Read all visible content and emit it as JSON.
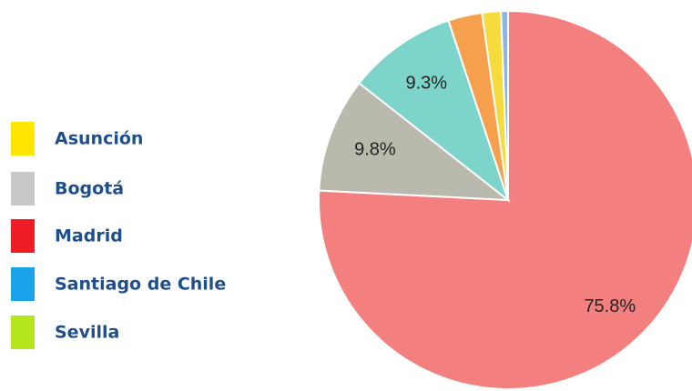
{
  "legend": [
    {
      "label": "Asunción",
      "color": "#ffe600"
    },
    {
      "label": "Bogotá",
      "color": "#c8c8c8"
    },
    {
      "label": "Madrid",
      "color": "#ee1c25"
    },
    {
      "label": "Santiago de Chile",
      "color": "#1aa3e8"
    },
    {
      "label": "Sevilla",
      "color": "#b5e61d"
    }
  ],
  "chart_data": {
    "type": "pie",
    "values": [
      75.8,
      9.8,
      9.3,
      2.9,
      1.6,
      0.6
    ],
    "value_labels": [
      "75.8%",
      "9.8%",
      "9.3%",
      null,
      null,
      null
    ],
    "colors": [
      "#f47f7f",
      "#bab9ad",
      "#7dd4cb",
      "#f6a04e",
      "#f5dc3c",
      "#8db4e8"
    ]
  }
}
